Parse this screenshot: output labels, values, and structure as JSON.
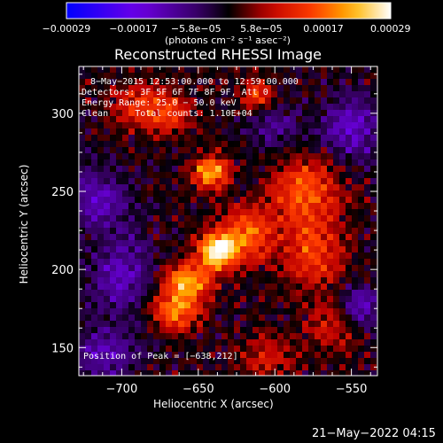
{
  "chart_data": {
    "type": "heatmap",
    "title": "Reconstructed RHESSI Image",
    "xlabel": "Heliocentric X (arcsec)",
    "ylabel": "Heliocentric Y (arcsec)",
    "xlim": [
      -728,
      -533
    ],
    "ylim": [
      132,
      330
    ],
    "x_ticks": [
      -700,
      -650,
      -600,
      -550
    ],
    "y_ticks": [
      150,
      200,
      250,
      300
    ],
    "x_tick_labels": [
      "−700",
      "−650",
      "−600",
      "−550"
    ],
    "y_tick_labels": [
      "150",
      "200",
      "250",
      "300"
    ],
    "colorbar": {
      "colormap": "RHESSI (blue-violet-black-red-orange-yellow-white)",
      "range": [
        -0.00029,
        0.00029
      ],
      "tick_labels": [
        "−0.00029",
        "−0.00017",
        "−5.8e−05",
        "5.8e−05",
        "0.00017",
        "0.00029"
      ],
      "unit_label": "(photons cm⁻² s⁻¹ asec⁻²)"
    },
    "annotations": [
      "8−May−2015 12:53:00.000 to 12:59:00.000",
      "Detectors: 3F 5F 6F 7F 8F 9F, Att 0",
      "Energy Range: 25.0 − 50.0 keV",
      "Clean     Total counts: 1.10E+04"
    ],
    "peak_label": "Position of Peak = [−638,212]",
    "peak": [
      -638,
      212
    ],
    "sources": [
      {
        "x": -638,
        "y": 212,
        "amp": 0.00029,
        "sx": 9,
        "sy": 8
      },
      {
        "x": -642,
        "y": 262,
        "amp": 0.00024,
        "sx": 8,
        "sy": 7
      },
      {
        "x": -657,
        "y": 192,
        "amp": 0.00022,
        "sx": 11,
        "sy": 8
      },
      {
        "x": -665,
        "y": 173,
        "amp": 0.00019,
        "sx": 12,
        "sy": 8
      },
      {
        "x": -618,
        "y": 222,
        "amp": 0.00017,
        "sx": 12,
        "sy": 12
      },
      {
        "x": -580,
        "y": 250,
        "amp": 0.00016,
        "sx": 16,
        "sy": 16
      },
      {
        "x": -575,
        "y": 210,
        "amp": 0.00014,
        "sx": 14,
        "sy": 14
      },
      {
        "x": -612,
        "y": 312,
        "amp": 0.00013,
        "sx": 7,
        "sy": 7
      },
      {
        "x": -690,
        "y": 305,
        "amp": 0.00012,
        "sx": 12,
        "sy": 10
      },
      {
        "x": -668,
        "y": 300,
        "amp": 0.00011,
        "sx": 10,
        "sy": 10
      },
      {
        "x": -560,
        "y": 165,
        "amp": 0.0001,
        "sx": 14,
        "sy": 12
      },
      {
        "x": -605,
        "y": 145,
        "amp": 9e-05,
        "sx": 12,
        "sy": 10
      },
      {
        "x": -700,
        "y": 195,
        "amp": -0.00013,
        "sx": 14,
        "sy": 18
      },
      {
        "x": -715,
        "y": 245,
        "amp": -0.00012,
        "sx": 14,
        "sy": 14
      },
      {
        "x": -545,
        "y": 175,
        "amp": -0.00015,
        "sx": 10,
        "sy": 10
      },
      {
        "x": -550,
        "y": 290,
        "amp": -0.00014,
        "sx": 14,
        "sy": 14
      },
      {
        "x": -710,
        "y": 145,
        "amp": -0.00012,
        "sx": 14,
        "sy": 12
      },
      {
        "x": -600,
        "y": 290,
        "amp": -8e-05,
        "sx": 12,
        "sy": 10
      }
    ]
  },
  "footer": {
    "timestamp": "21−May−2022 04:15"
  }
}
